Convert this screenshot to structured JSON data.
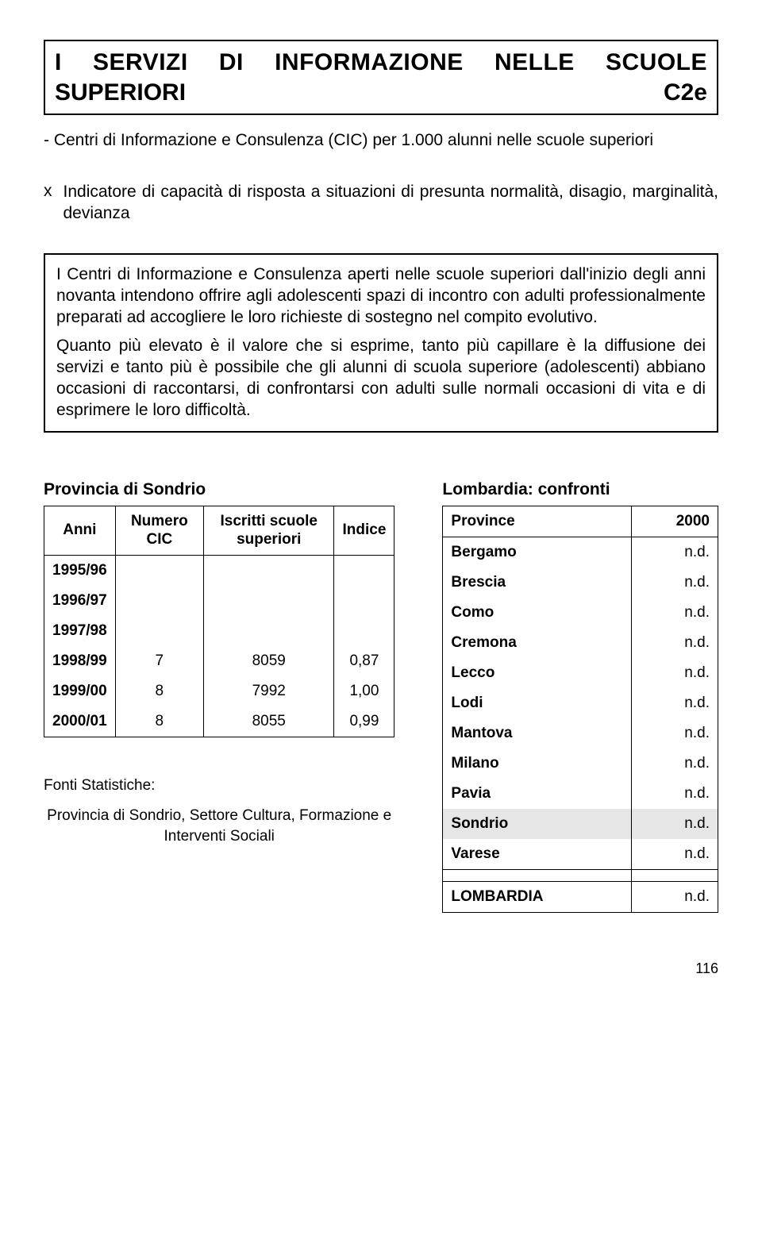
{
  "title_line1": "I SERVIZI DI INFORMAZIONE NELLE SCUOLE",
  "title_line2_left": "SUPERIORI",
  "title_line2_right": "C2e",
  "subtitle": "- Centri di Informazione e Consulenza (CIC) per 1.000 alunni nelle scuole superiori",
  "x_label": "x",
  "x_text": "Indicatore di capacità di risposta a situazioni di presunta normalità, disagio, marginalità, devianza",
  "desc_p1": "I Centri di Informazione e Consulenza aperti nelle scuole superiori dall'inizio degli anni novanta intendono offrire agli adolescenti spazi di incontro con adulti professionalmente preparati ad accogliere le loro richieste di sostegno nel compito evolutivo.",
  "desc_p2": "Quanto più elevato è il valore che si esprime, tanto più capillare è la diffusione dei servizi e tanto più è possibile che gli alunni di scuola superiore (adolescenti) abbiano occasioni di raccontarsi, di confrontarsi con adulti sulle normali occasioni di vita e di esprimere le loro difficoltà.",
  "left_caption": "Provincia di Sondrio",
  "left_headers": [
    "Anni",
    "Numero CIC",
    "Iscritti scuole superiori",
    "Indice"
  ],
  "left_rows": [
    {
      "anno": "1995/96",
      "v1": "",
      "v2": "",
      "v3": ""
    },
    {
      "anno": "1996/97",
      "v1": "",
      "v2": "",
      "v3": ""
    },
    {
      "anno": "1997/98",
      "v1": "",
      "v2": "",
      "v3": ""
    },
    {
      "anno": "1998/99",
      "v1": "7",
      "v2": "8059",
      "v3": "0,87"
    },
    {
      "anno": "1999/00",
      "v1": "8",
      "v2": "7992",
      "v3": "1,00"
    },
    {
      "anno": "2000/01",
      "v1": "8",
      "v2": "8055",
      "v3": "0,99"
    }
  ],
  "sources_hdr": "Fonti Statistiche:",
  "sources_body": "Provincia di Sondrio, Settore Cultura, Formazione e Interventi Sociali",
  "right_caption": "Lombardia: confronti",
  "right_headers": [
    "Province",
    "2000"
  ],
  "right_rows": [
    {
      "p": "Bergamo",
      "v": "n.d.",
      "hl": false
    },
    {
      "p": "Brescia",
      "v": "n.d.",
      "hl": false
    },
    {
      "p": "Como",
      "v": "n.d.",
      "hl": false
    },
    {
      "p": "Cremona",
      "v": "n.d.",
      "hl": false
    },
    {
      "p": "Lecco",
      "v": "n.d.",
      "hl": false
    },
    {
      "p": "Lodi",
      "v": "n.d.",
      "hl": false
    },
    {
      "p": "Mantova",
      "v": "n.d.",
      "hl": false
    },
    {
      "p": "Milano",
      "v": "n.d.",
      "hl": false
    },
    {
      "p": "Pavia",
      "v": "n.d.",
      "hl": false
    },
    {
      "p": "Sondrio",
      "v": "n.d.",
      "hl": true
    },
    {
      "p": "Varese",
      "v": "n.d.",
      "hl": false
    }
  ],
  "right_total": {
    "p": "LOMBARDIA",
    "v": "n.d."
  },
  "page_number": "116",
  "colors": {
    "highlight_bg": "#e6e6e6",
    "text": "#000000",
    "border": "#000000",
    "background": "#ffffff"
  }
}
